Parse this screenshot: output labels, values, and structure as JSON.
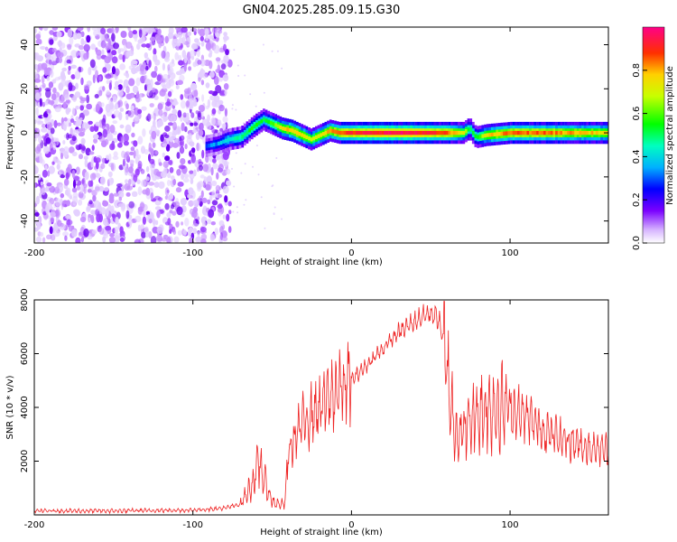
{
  "title": "GN04.2025.285.09.15.G30",
  "chart_data": [
    {
      "type": "heatmap",
      "xlabel": "Height of straight line (km)",
      "ylabel": "Frequency (Hz)",
      "xlim": [
        -200,
        162
      ],
      "ylim": [
        -50,
        48
      ],
      "xticks": [
        -200,
        -100,
        0,
        100
      ],
      "yticks": [
        -40,
        -20,
        0,
        20,
        40
      ],
      "colorbar": {
        "label": "Normalized spectral amplitude",
        "range": [
          0,
          1
        ],
        "ticks": [
          0.0,
          0.2,
          0.4,
          0.6,
          0.8
        ],
        "tick_labels": [
          "0.0",
          "0.2",
          "0.4",
          "0.6",
          "0.8"
        ]
      },
      "noise_region": {
        "x": [
          -200,
          -80
        ],
        "freq": [
          -50,
          48
        ],
        "amplitude": "0.1-0.4"
      },
      "ridge": [
        {
          "x": -92,
          "f": -6,
          "a": 0.3
        },
        {
          "x": -85,
          "f": -5,
          "a": 0.35
        },
        {
          "x": -78,
          "f": -3,
          "a": 0.45
        },
        {
          "x": -70,
          "f": -2,
          "a": 0.5
        },
        {
          "x": -62,
          "f": 3,
          "a": 0.55
        },
        {
          "x": -56,
          "f": 6,
          "a": 0.5
        },
        {
          "x": -50,
          "f": 4,
          "a": 0.6
        },
        {
          "x": -44,
          "f": 2,
          "a": 0.75
        },
        {
          "x": -38,
          "f": 1,
          "a": 0.8
        },
        {
          "x": -32,
          "f": -1,
          "a": 0.75
        },
        {
          "x": -26,
          "f": -3,
          "a": 0.7
        },
        {
          "x": -20,
          "f": -1,
          "a": 0.75
        },
        {
          "x": -14,
          "f": 1,
          "a": 0.8
        },
        {
          "x": -8,
          "f": 0,
          "a": 0.85
        },
        {
          "x": 0,
          "f": 0,
          "a": 0.9
        },
        {
          "x": 20,
          "f": 0,
          "a": 0.95
        },
        {
          "x": 40,
          "f": 0,
          "a": 0.95
        },
        {
          "x": 60,
          "f": 0,
          "a": 0.85
        },
        {
          "x": 70,
          "f": 0,
          "a": 0.7
        },
        {
          "x": 74,
          "f": 2,
          "a": 0.5
        },
        {
          "x": 78,
          "f": -2,
          "a": 0.55
        },
        {
          "x": 85,
          "f": -1,
          "a": 0.75
        },
        {
          "x": 100,
          "f": 0,
          "a": 0.85
        },
        {
          "x": 120,
          "f": 0,
          "a": 0.85
        },
        {
          "x": 140,
          "f": 0,
          "a": 0.8
        },
        {
          "x": 162,
          "f": 0,
          "a": 0.75
        }
      ]
    },
    {
      "type": "line",
      "xlabel": "Height of straight line (km)",
      "ylabel": "SNR (10 * v/v)",
      "xlim": [
        -200,
        162
      ],
      "ylim": [
        0,
        8000
      ],
      "xticks": [
        -200,
        -100,
        0,
        100
      ],
      "yticks": [
        2000,
        4000,
        6000,
        8000
      ],
      "color": "#ee2222",
      "series": [
        {
          "name": "SNR",
          "x": [
            -200,
            -150,
            -100,
            -80,
            -70,
            -62,
            -58,
            -55,
            -52,
            -50,
            -46,
            -42,
            -40,
            -35,
            -30,
            -20,
            -10,
            0,
            10,
            20,
            30,
            40,
            45,
            50,
            55,
            58,
            62,
            65,
            70,
            75,
            80,
            90,
            100,
            110,
            120,
            130,
            140,
            150,
            162
          ],
          "y": [
            150,
            150,
            180,
            250,
            400,
            1200,
            2000,
            1300,
            800,
            500,
            400,
            400,
            2200,
            3000,
            3500,
            4000,
            4600,
            5000,
            5600,
            6200,
            6800,
            7200,
            7400,
            7500,
            7300,
            6500,
            4500,
            3200,
            3000,
            3500,
            3800,
            4000,
            4000,
            3600,
            3200,
            2900,
            2700,
            2500,
            2400
          ]
        }
      ]
    }
  ]
}
